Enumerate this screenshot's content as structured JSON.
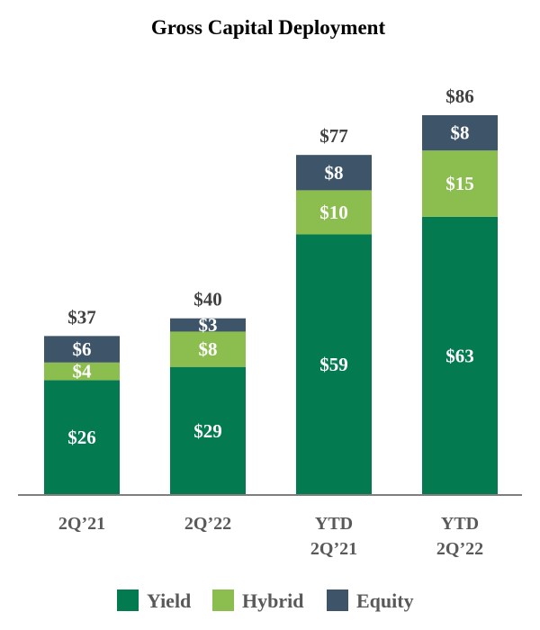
{
  "chart_data": {
    "type": "bar",
    "stacked": true,
    "title": "Gross Capital Deployment",
    "categories": [
      [
        "2Q’21"
      ],
      [
        "2Q’22"
      ],
      [
        "YTD",
        "2Q’21"
      ],
      [
        "YTD",
        "2Q’22"
      ]
    ],
    "series": [
      {
        "name": "Yield",
        "color": "#037a4f",
        "values": [
          26,
          29,
          59,
          63
        ],
        "labels": [
          "$26",
          "$29",
          "$59",
          "$63"
        ]
      },
      {
        "name": "Hybrid",
        "color": "#8cbd4f",
        "values": [
          4,
          8,
          10,
          15
        ],
        "labels": [
          "$4",
          "$8",
          "$10",
          "$15"
        ]
      },
      {
        "name": "Equity",
        "color": "#3e5468",
        "values": [
          6,
          3,
          8,
          8
        ],
        "labels": [
          "$6",
          "$3",
          "$8",
          "$8"
        ]
      }
    ],
    "totals": [
      37,
      40,
      77,
      86
    ],
    "total_labels": [
      "$37",
      "$40",
      "$77",
      "$86"
    ],
    "ylim": [
      0,
      86
    ],
    "xlabel": "",
    "ylabel": "",
    "legend_position": "bottom",
    "grid": false,
    "axis_color": "#7f7f7f"
  }
}
